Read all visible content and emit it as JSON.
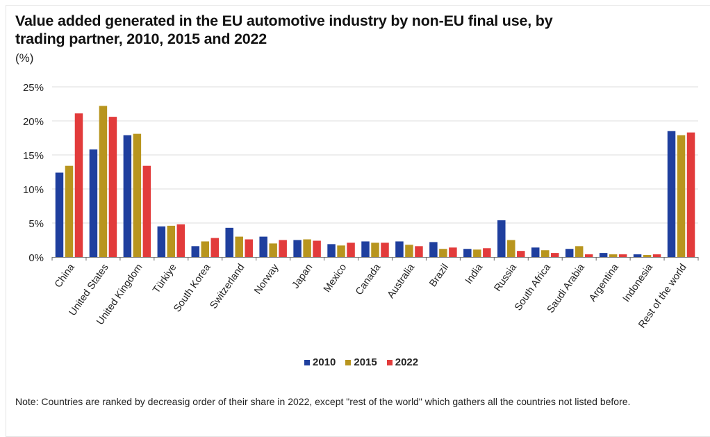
{
  "chart_data": {
    "type": "bar",
    "title": "Value added generated in the EU automotive industry by non-EU final use, by trading partner, 2010, 2015 and 2022",
    "unit_label": "(%)",
    "xlabel": "",
    "ylabel": "",
    "ylim": [
      0,
      25
    ],
    "yticks": [
      0,
      5,
      10,
      15,
      20,
      25
    ],
    "ytick_labels": [
      "0%",
      "5%",
      "10%",
      "15%",
      "20%",
      "25%"
    ],
    "grid": true,
    "legend_position": "bottom",
    "categories": [
      "China",
      "United States",
      "United Kingdom",
      "Türkiye",
      "South Korea",
      "Switzerland",
      "Norway",
      "Japan",
      "Mexico",
      "Canada",
      "Australia",
      "Brazil",
      "India",
      "Russia",
      "South Africa",
      "Saudi Arabia",
      "Argentina",
      "Indonesia",
      "Rest of the world"
    ],
    "series": [
      {
        "name": "2010",
        "color": "#1f3f9e",
        "values": [
          12.4,
          15.8,
          17.9,
          4.5,
          1.6,
          4.3,
          3.0,
          2.5,
          1.9,
          2.3,
          2.3,
          2.2,
          1.2,
          5.4,
          1.4,
          1.2,
          0.6,
          0.4,
          18.5
        ]
      },
      {
        "name": "2015",
        "color": "#b8951e",
        "values": [
          13.4,
          22.2,
          18.1,
          4.6,
          2.3,
          3.0,
          2.0,
          2.6,
          1.7,
          2.1,
          1.8,
          1.2,
          1.1,
          2.5,
          1.0,
          1.6,
          0.4,
          0.3,
          17.9
        ]
      },
      {
        "name": "2022",
        "color": "#e23b3b",
        "values": [
          21.1,
          20.6,
          13.4,
          4.8,
          2.8,
          2.6,
          2.5,
          2.4,
          2.1,
          2.1,
          1.6,
          1.4,
          1.3,
          0.9,
          0.6,
          0.4,
          0.4,
          0.4,
          18.3
        ]
      }
    ],
    "note": "Note: Countries  are ranked by decreasig order of their share in 2022, except \"rest of the world\" which gathers all the countries  not listed before."
  }
}
